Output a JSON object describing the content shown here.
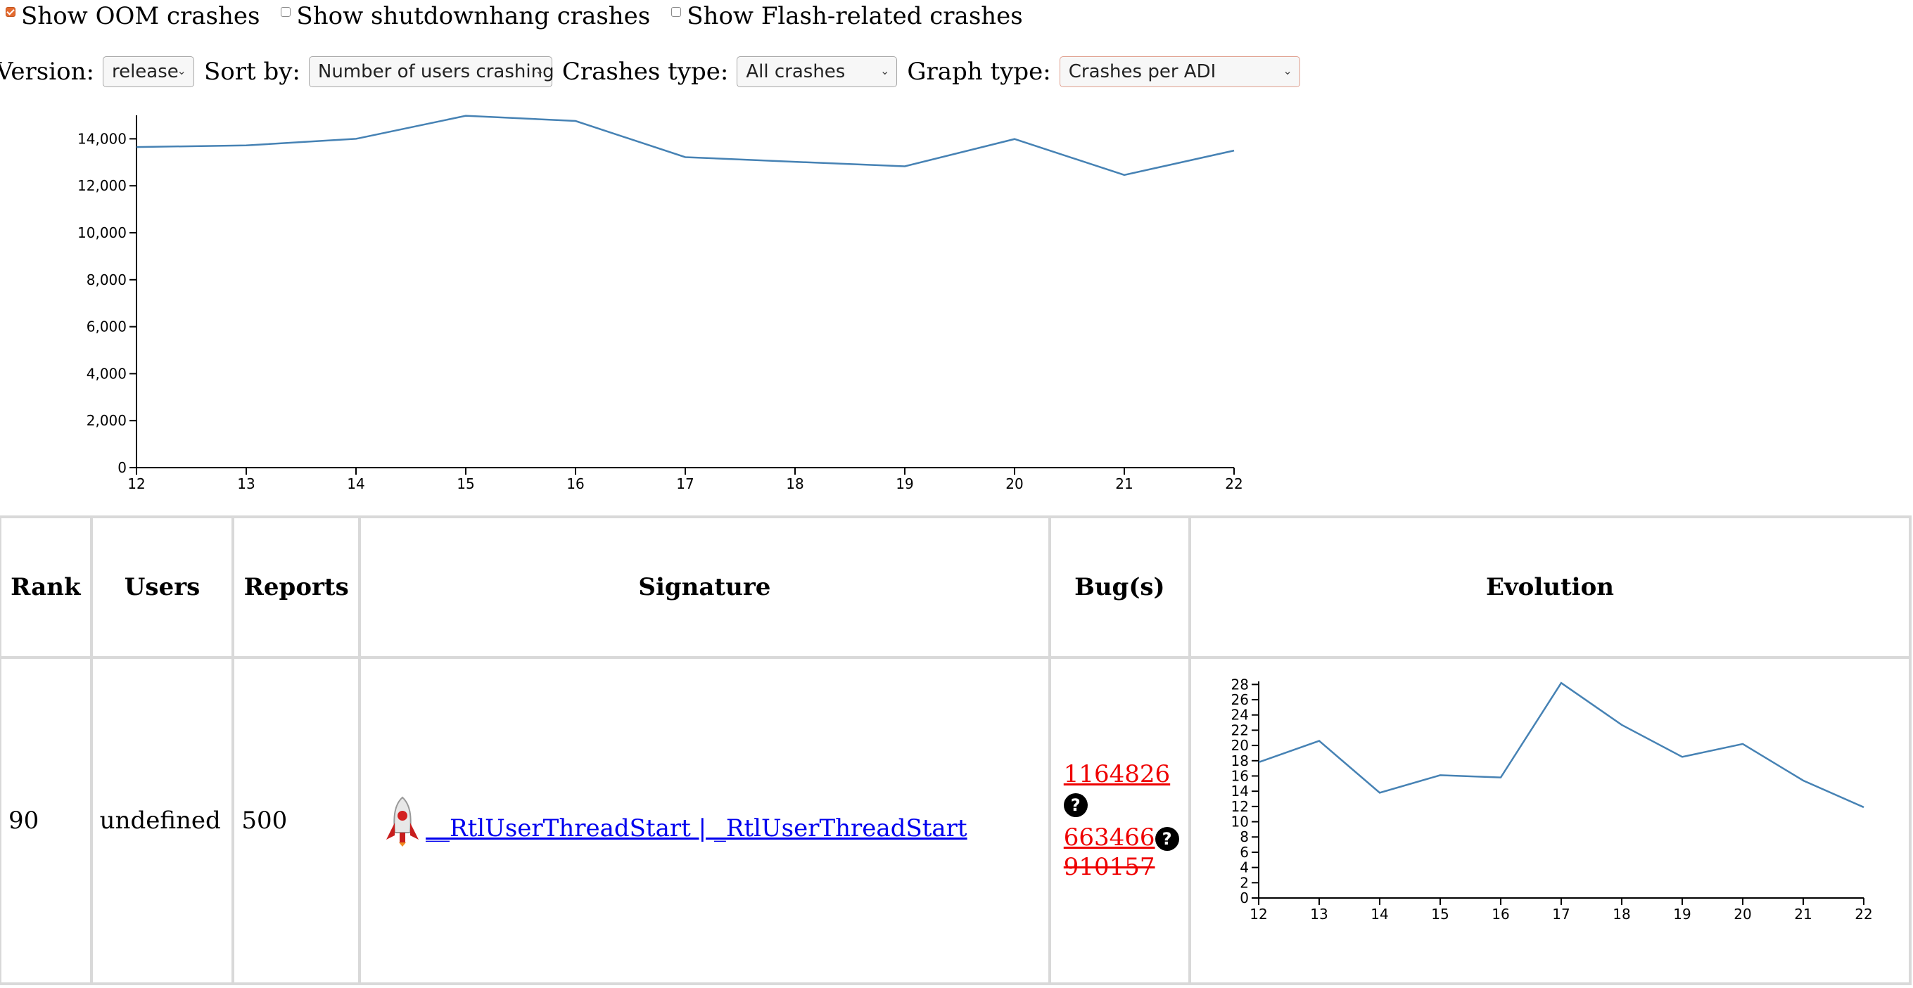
{
  "filters": {
    "oom": {
      "label": "Show OOM crashes",
      "checked": true
    },
    "shutdownhang": {
      "label": "Show shutdownhang crashes",
      "checked": false
    },
    "flash": {
      "label": "Show Flash-related crashes",
      "checked": false
    }
  },
  "controls": {
    "version": {
      "label": "Version:",
      "value": "release"
    },
    "sort": {
      "label": "Sort by:",
      "value": "Number of users crashing"
    },
    "crash_type": {
      "label": "Crashes type:",
      "value": "All crashes"
    },
    "graph_type": {
      "label": "Graph type:",
      "value": "Crashes per ADI"
    }
  },
  "chart_data": [
    {
      "type": "line",
      "x": [
        12,
        13,
        14,
        15,
        16,
        17,
        18,
        19,
        20,
        21,
        22
      ],
      "series": [
        {
          "values": [
            13650,
            13720,
            14000,
            14980,
            14760,
            13220,
            13020,
            12830,
            13990,
            12460,
            13500
          ]
        }
      ],
      "xticks": [
        "12",
        "13",
        "14",
        "15",
        "16",
        "17",
        "18",
        "19",
        "20",
        "21",
        "22"
      ],
      "yticks": [
        "0",
        "2,000",
        "4,000",
        "6,000",
        "8,000",
        "10,000",
        "12,000",
        "14,000"
      ],
      "ylim": [
        0,
        15000
      ],
      "color": "#4682b4"
    },
    {
      "type": "line",
      "x": [
        12,
        13,
        14,
        15,
        16,
        17,
        18,
        19,
        20,
        21,
        22
      ],
      "series": [
        {
          "values": [
            17.8,
            20.6,
            13.8,
            16.1,
            15.8,
            28.2,
            22.7,
            18.5,
            20.2,
            15.4,
            11.9
          ]
        }
      ],
      "xticks": [
        "12",
        "13",
        "14",
        "15",
        "16",
        "17",
        "18",
        "19",
        "20",
        "21",
        "22"
      ],
      "yticks": [
        "0",
        "2",
        "4",
        "6",
        "8",
        "10",
        "12",
        "14",
        "16",
        "18",
        "20",
        "22",
        "24",
        "26",
        "28"
      ],
      "ylim": [
        0,
        28.4
      ],
      "color": "#4682b4"
    }
  ],
  "table": {
    "headers": {
      "rank": "Rank",
      "users": "Users",
      "reports": "Reports",
      "signature": "Signature",
      "bugs": "Bug(s)",
      "evolution": "Evolution"
    },
    "rows": [
      {
        "rank": "90",
        "users": "undefined",
        "reports": "500",
        "signature": "__RtlUserThreadStart | _RtlUserThreadStart",
        "bugs": [
          {
            "id": "1164826",
            "resolved": false,
            "has_help": true
          },
          {
            "id": "663466",
            "resolved": false,
            "has_help": true
          },
          {
            "id": "910157",
            "resolved": true,
            "has_help": false
          }
        ]
      }
    ]
  },
  "icons": {
    "signature": "rocket-icon",
    "help": "question-icon"
  }
}
